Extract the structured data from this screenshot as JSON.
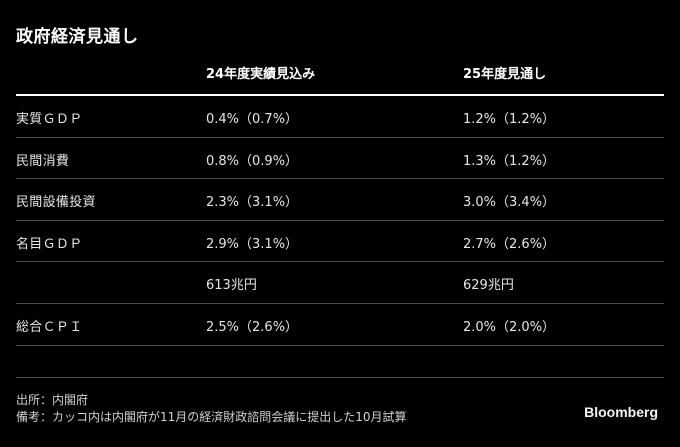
{
  "title": "政府経済見通し",
  "table": {
    "headers": [
      "",
      "24年度実績見込み",
      "25年度見通し"
    ],
    "rows": [
      {
        "label": "実質ＧＤＰ",
        "fy24": "0.4%（0.7%）",
        "fy25": "1.2%（1.2%）"
      },
      {
        "label": "民間消費",
        "fy24": "0.8%（0.9%）",
        "fy25": "1.3%（1.2%）"
      },
      {
        "label": "民間設備投資",
        "fy24": "2.3%（3.1%）",
        "fy25": "3.0%（3.4%）"
      },
      {
        "label": "名目ＧＤＰ",
        "fy24": "2.9%（3.1%）",
        "fy25": "2.7%（2.6%）"
      },
      {
        "label": "",
        "fy24": "613兆円",
        "fy25": "629兆円"
      },
      {
        "label": "総合ＣＰＩ",
        "fy24": "2.5%（2.6%）",
        "fy25": "2.0%（2.0%）"
      }
    ]
  },
  "notes": {
    "source": "出所：内閣府",
    "remark": "備考：カッコ内は内閣府が11月の経済財政諮問会議に提出した10月試算"
  },
  "brand": "Bloomberg",
  "colors": {
    "background": "#000000",
    "text": "#e6e6e6",
    "header_rule": "#ffffff",
    "row_rule": "#4a4a4a"
  }
}
